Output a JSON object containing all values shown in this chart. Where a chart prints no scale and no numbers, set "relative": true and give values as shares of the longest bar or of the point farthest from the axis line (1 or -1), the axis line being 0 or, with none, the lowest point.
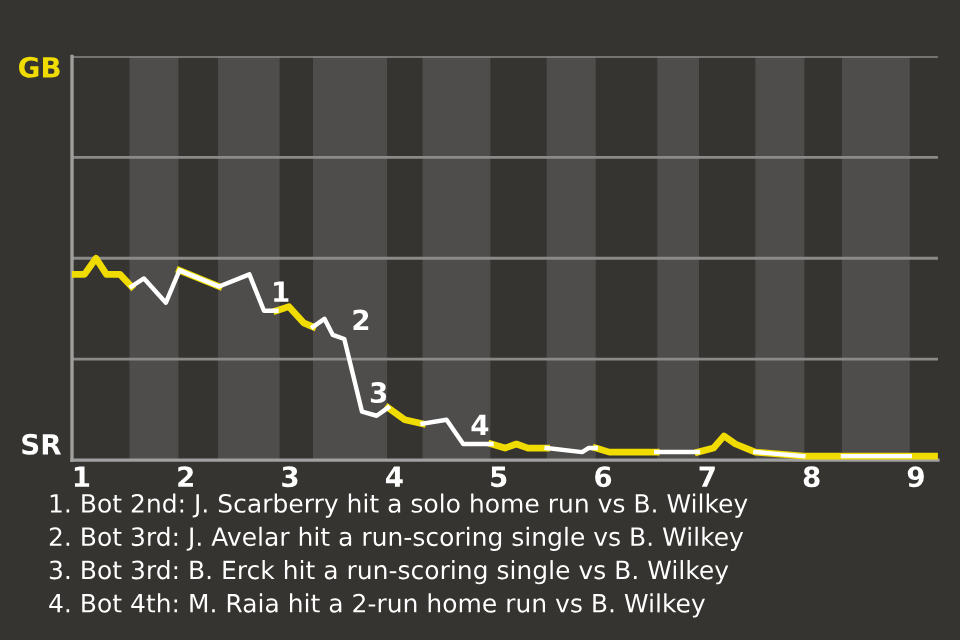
{
  "chart_data": {
    "type": "line",
    "relative": true,
    "x": [
      0.92,
      1.03,
      1.14,
      1.24,
      1.37,
      1.48,
      1.6,
      1.81,
      1.94,
      2.32,
      2.61,
      2.75,
      2.87,
      2.99,
      3.13,
      3.22,
      3.33,
      3.41,
      3.52,
      3.69,
      3.83,
      3.94,
      4.1,
      4.27,
      4.5,
      4.66,
      4.93,
      5.06,
      5.17,
      5.28,
      5.46,
      5.8,
      5.86,
      5.93,
      6.06,
      6.4,
      6.51,
      6.67,
      6.91,
      7.06,
      7.16,
      7.27,
      7.46,
      7.92,
      8.04,
      8.3,
      8.94,
      9.21
    ],
    "series": [
      {
        "color": "#f0dc00",
        "values": [
          0.92,
          0.92,
          1.0,
          0.92,
          0.92,
          0.86,
          null,
          null,
          0.94,
          0.86,
          null,
          null,
          0.74,
          0.76,
          0.68,
          0.66,
          null,
          null,
          null,
          null,
          null,
          0.26,
          0.2,
          0.18,
          null,
          null,
          0.08,
          0.06,
          0.08,
          0.06,
          0.06,
          null,
          null,
          0.06,
          0.04,
          0.04,
          0.04,
          null,
          0.04,
          0.06,
          0.12,
          0.08,
          0.04,
          0.02,
          0.02,
          0.02,
          0.02,
          0.02
        ]
      },
      {
        "color": "#ffffff",
        "values": [
          null,
          null,
          null,
          null,
          null,
          0.86,
          0.9,
          0.78,
          0.94,
          0.86,
          0.92,
          0.74,
          0.74,
          null,
          null,
          0.66,
          0.7,
          0.62,
          0.6,
          0.24,
          0.22,
          0.26,
          null,
          0.18,
          0.2,
          0.08,
          0.08,
          null,
          null,
          null,
          0.06,
          0.04,
          0.06,
          0.06,
          null,
          null,
          0.04,
          0.04,
          0.04,
          null,
          null,
          null,
          0.04,
          0.02,
          null,
          0.02,
          0.02,
          null
        ]
      }
    ],
    "xlim": [
      0.91,
      9.21
    ],
    "xticks": [
      1,
      2,
      3,
      4,
      5,
      6,
      7,
      8,
      9
    ],
    "ref_lines": [
      {
        "axis": "y",
        "value": 0.5,
        "color": "#8a8a88"
      },
      {
        "axis": "y",
        "value": 1,
        "color": "#8a8a88"
      },
      {
        "axis": "y",
        "value": 1.5,
        "color": "#8a8a88"
      },
      {
        "axis": "y",
        "value": 2,
        "color": "#8a8a88"
      }
    ],
    "tick_labels": "x",
    "bands": [
      {
        "axis": "x",
        "from": 1.46,
        "to": 1.93,
        "color": "#4e4d4b"
      },
      {
        "axis": "x",
        "from": 2.31,
        "to": 2.9,
        "color": "#4e4d4b"
      },
      {
        "axis": "x",
        "from": 3.22,
        "to": 3.93,
        "color": "#4e4d4b"
      },
      {
        "axis": "x",
        "from": 4.27,
        "to": 4.92,
        "color": "#4e4d4b"
      },
      {
        "axis": "x",
        "from": 5.46,
        "to": 5.93,
        "color": "#4e4d4b"
      },
      {
        "axis": "x",
        "from": 6.52,
        "to": 6.92,
        "color": "#4e4d4b"
      },
      {
        "axis": "x",
        "from": 7.46,
        "to": 7.93,
        "color": "#4e4d4b"
      },
      {
        "axis": "x",
        "from": 8.29,
        "to": 8.94,
        "color": "#4e4d4b"
      }
    ],
    "annotations": [
      "GB",
      "SR",
      {
        "text": "1",
        "x": 2.75,
        "y": 0.74
      },
      {
        "text": "2",
        "x": 3.52,
        "y": 0.6
      },
      {
        "text": "3",
        "x": 3.69,
        "y": 0.24
      },
      {
        "text": "4",
        "x": 4.66,
        "y": 0.08
      },
      "1. Bot 2nd: J. Scarberry hit a solo home run vs B. Wilkey",
      "2. Bot 3rd: J. Avelar hit a run-scoring single vs B. Wilkey",
      "3. Bot 3rd: B. Erck hit a run-scoring single vs B. Wilkey",
      "4. Bot 4th: M. Raia hit a 2-run home run vs B. Wilkey"
    ]
  }
}
